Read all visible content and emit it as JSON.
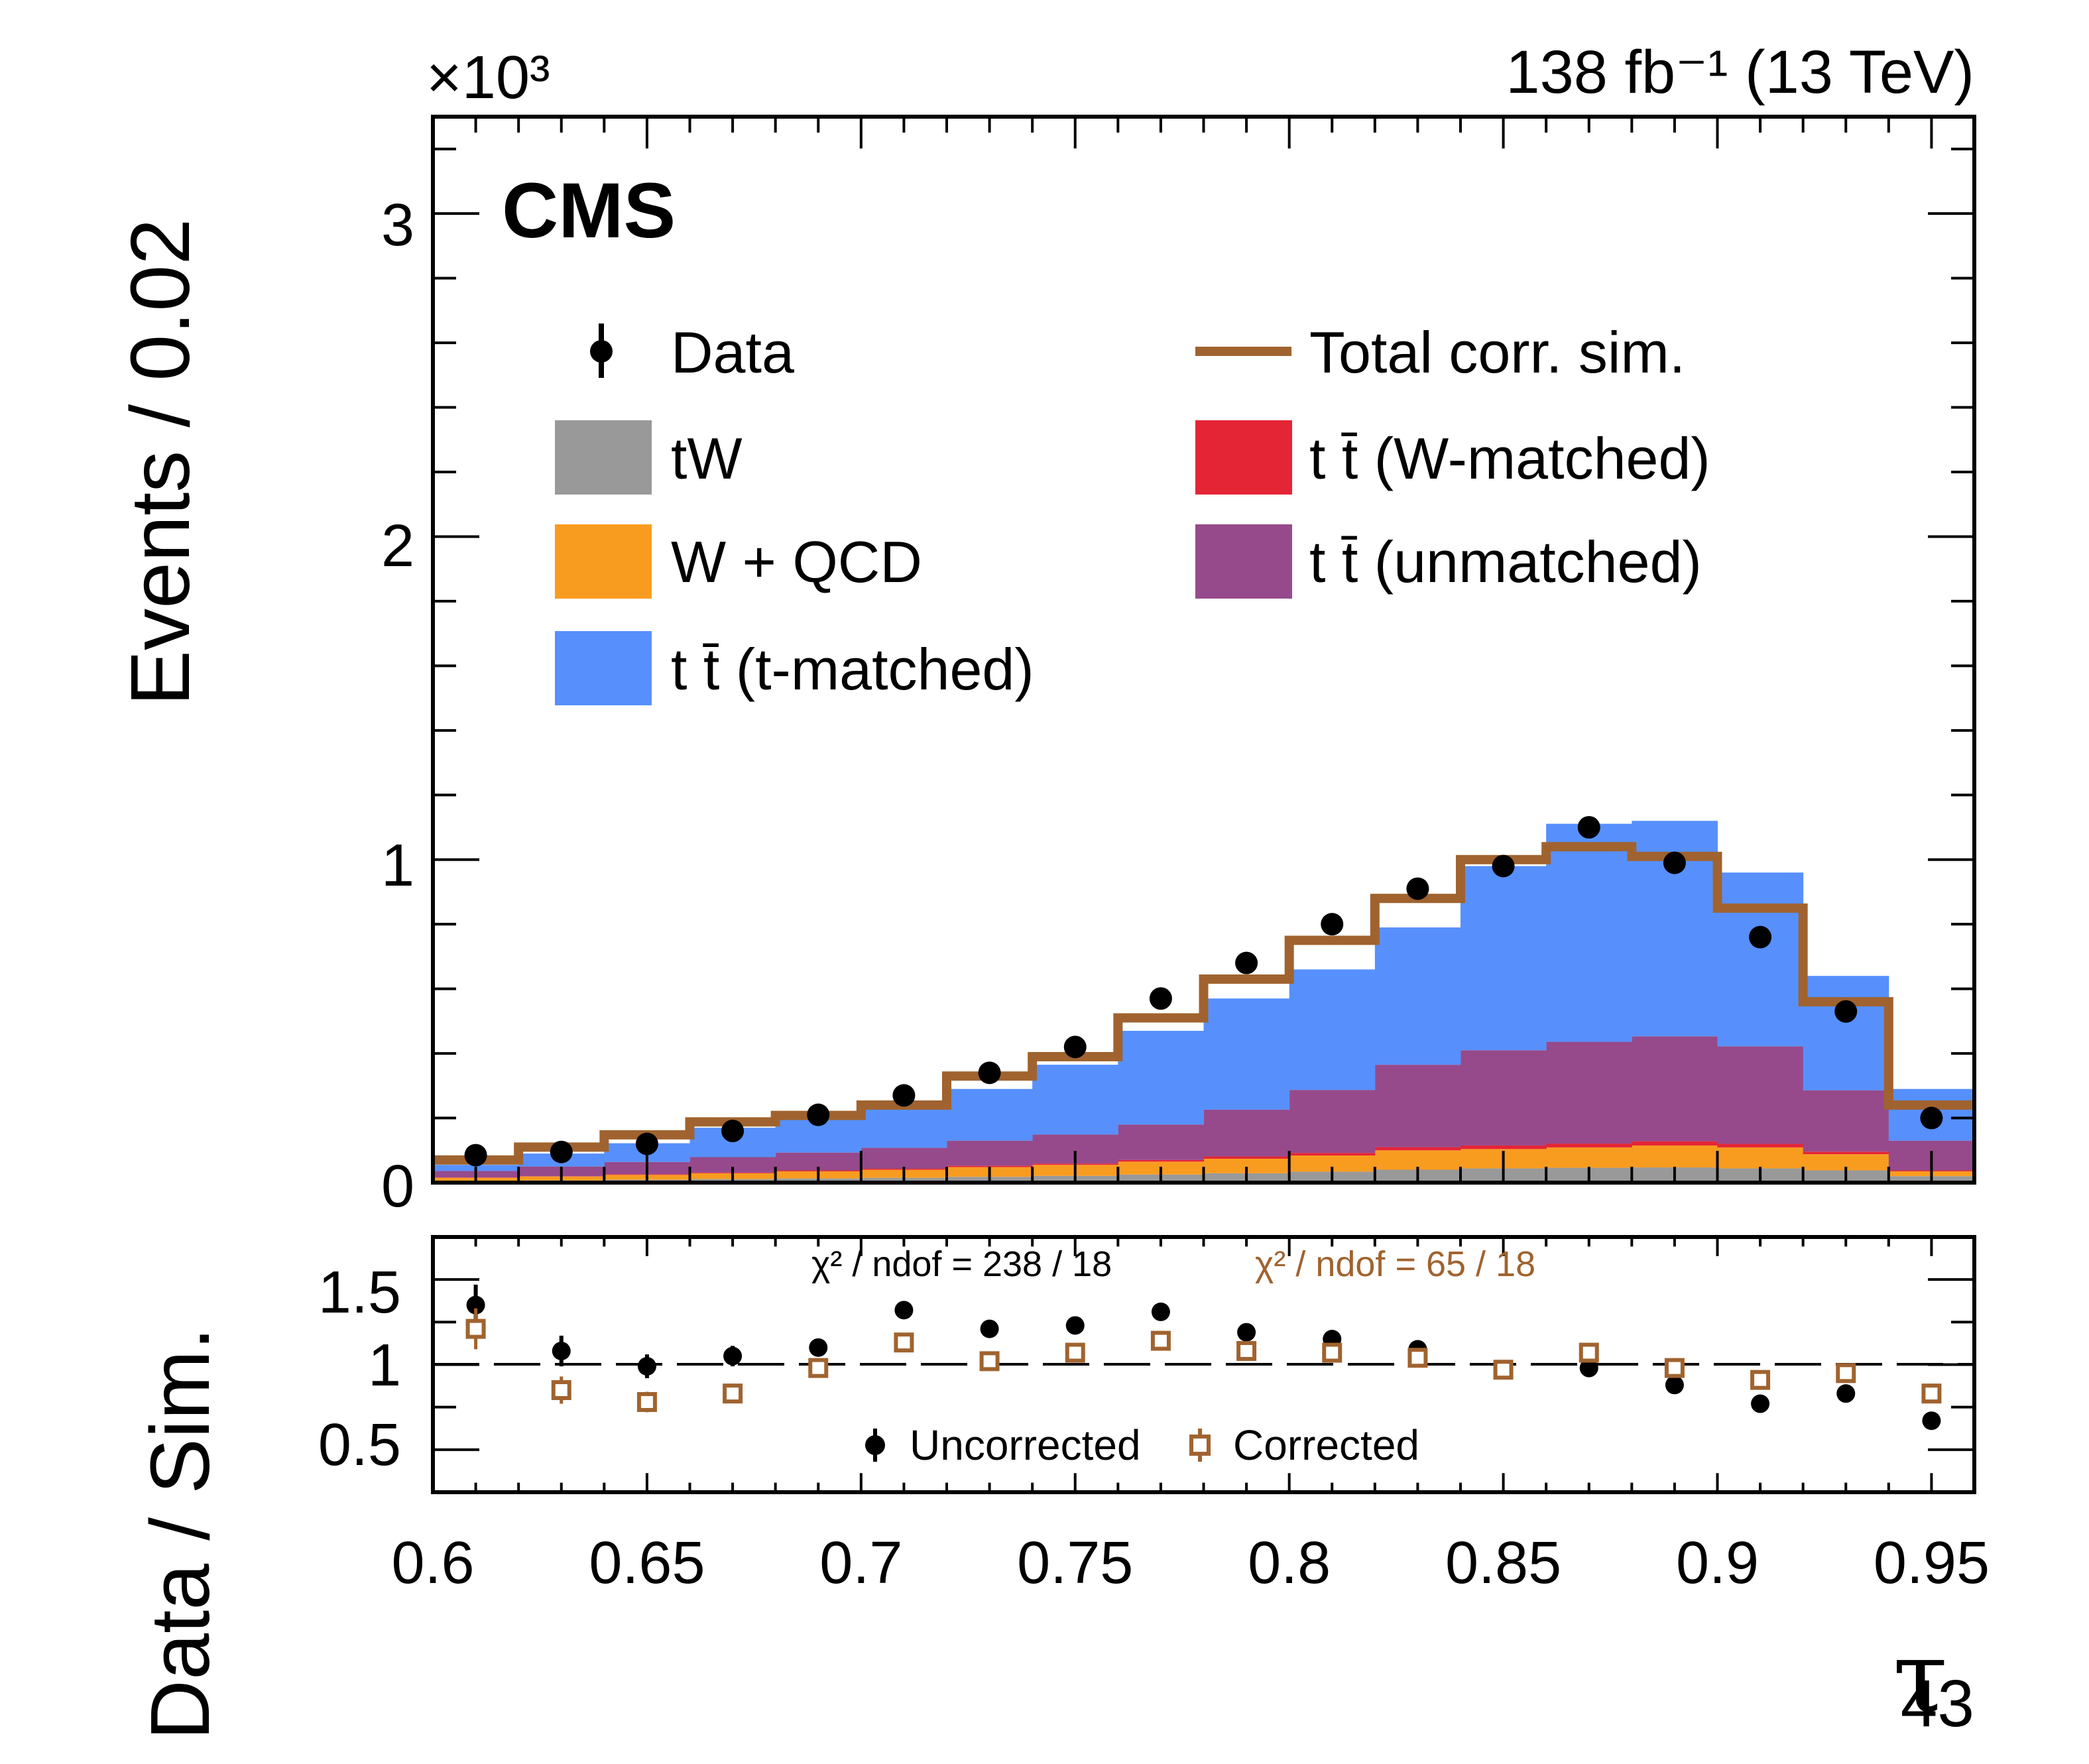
{
  "lumi_label": "138 fb⁻¹ (13 TeV)",
  "experiment_label": "CMS",
  "scale_label": "×10³",
  "top_panel": {
    "ylabel": "Events / 0.02",
    "yticks": [
      "0",
      "1",
      "2",
      "3"
    ]
  },
  "bottom_panel": {
    "ylabel": "Data / Sim.",
    "yticks": [
      "0.5",
      "1",
      "1.5"
    ],
    "chi2_uncorrected": "χ² / ndof = 238 / 18",
    "chi2_corrected": "χ² / ndof = 65 / 18",
    "legend": {
      "uncorrected": "Uncorrected",
      "corrected": "Corrected"
    }
  },
  "x_axis": {
    "label_main": "τ",
    "label_sub": "43",
    "ticks": [
      "0.6",
      "0.65",
      "0.7",
      "0.75",
      "0.8",
      "0.85",
      "0.9",
      "0.95"
    ]
  },
  "legend": {
    "data": "Data",
    "total": "Total corr. sim.",
    "tw": "tW",
    "ttbar_w": "t t̄ (W-matched)",
    "wqcd": "W + QCD",
    "ttbar_un": "t t̄ (unmatched)",
    "ttbar_t": "t t̄ (t-matched)"
  },
  "colors": {
    "tw": "#999999",
    "wqcd": "#f89c20",
    "ttbar_w": "#e42536",
    "ttbar_un": "#964a8b",
    "ttbar_t": "#5790fc",
    "total": "#a0632f",
    "corrected": "#a0632f"
  },
  "chart_data": {
    "type": "bar",
    "stacked": true,
    "x_range": [
      0.6,
      0.96
    ],
    "bin_width": 0.02,
    "bin_edges": [
      0.6,
      0.62,
      0.64,
      0.66,
      0.68,
      0.7,
      0.72,
      0.74,
      0.76,
      0.78,
      0.8,
      0.82,
      0.84,
      0.86,
      0.88,
      0.9,
      0.92,
      0.94,
      0.96
    ],
    "ylim_top": [
      0,
      3.3
    ],
    "ylim_ratio": [
      0.25,
      1.75
    ],
    "units_note": "top panel values in units of 10^3 events",
    "series": [
      {
        "name": "tW",
        "values": [
          0.005,
          0.007,
          0.009,
          0.011,
          0.013,
          0.015,
          0.018,
          0.021,
          0.025,
          0.029,
          0.034,
          0.04,
          0.044,
          0.046,
          0.047,
          0.044,
          0.038,
          0.02
        ]
      },
      {
        "name": "W + QCD",
        "values": [
          0.01,
          0.012,
          0.015,
          0.018,
          0.022,
          0.025,
          0.03,
          0.034,
          0.04,
          0.045,
          0.05,
          0.06,
          0.06,
          0.063,
          0.068,
          0.065,
          0.05,
          0.015
        ]
      },
      {
        "name": "tt (W-matched)",
        "values": [
          0.001,
          0.001,
          0.002,
          0.002,
          0.003,
          0.003,
          0.004,
          0.004,
          0.005,
          0.007,
          0.008,
          0.01,
          0.011,
          0.012,
          0.013,
          0.011,
          0.008,
          0.003
        ]
      },
      {
        "name": "tt (unmatched)",
        "values": [
          0.02,
          0.03,
          0.038,
          0.048,
          0.055,
          0.065,
          0.078,
          0.09,
          0.11,
          0.145,
          0.195,
          0.255,
          0.295,
          0.315,
          0.325,
          0.302,
          0.19,
          0.092
        ]
      },
      {
        "name": "tt (t-matched)",
        "values": [
          0.019,
          0.04,
          0.058,
          0.091,
          0.112,
          0.127,
          0.16,
          0.216,
          0.29,
          0.344,
          0.373,
          0.425,
          0.57,
          0.675,
          0.667,
          0.538,
          0.354,
          0.16
        ]
      }
    ],
    "total_corrected": [
      0.07,
      0.11,
      0.148,
      0.188,
      0.208,
      0.24,
      0.33,
      0.39,
      0.51,
      0.63,
      0.75,
      0.88,
      1.0,
      1.04,
      1.01,
      0.85,
      0.56,
      0.24
    ],
    "data": {
      "x": [
        0.61,
        0.63,
        0.65,
        0.67,
        0.69,
        0.71,
        0.73,
        0.75,
        0.77,
        0.79,
        0.81,
        0.83,
        0.85,
        0.87,
        0.89,
        0.91,
        0.93,
        0.95
      ],
      "y": [
        0.085,
        0.095,
        0.12,
        0.16,
        0.21,
        0.27,
        0.34,
        0.42,
        0.57,
        0.68,
        0.8,
        0.91,
        0.98,
        1.1,
        0.99,
        0.76,
        0.53,
        0.2
      ],
      "yerr": [
        0.01,
        0.01,
        0.011,
        0.013,
        0.015,
        0.016,
        0.018,
        0.02,
        0.024,
        0.026,
        0.028,
        0.03,
        0.031,
        0.033,
        0.031,
        0.028,
        0.023,
        0.014
      ]
    },
    "ratio_uncorrected": {
      "x": [
        0.61,
        0.63,
        0.65,
        0.67,
        0.69,
        0.71,
        0.73,
        0.75,
        0.77,
        0.79,
        0.81,
        0.83,
        0.85,
        0.87,
        0.89,
        0.91,
        0.93,
        0.95
      ],
      "y": [
        1.35,
        1.08,
        0.99,
        1.05,
        1.1,
        1.32,
        1.21,
        1.23,
        1.31,
        1.19,
        1.15,
        1.09,
        0.97,
        0.98,
        0.88,
        0.77,
        0.83,
        0.67
      ],
      "yerr": [
        0.12,
        0.09,
        0.07,
        0.06,
        0.05,
        0.05,
        0.04,
        0.04,
        0.03,
        0.03,
        0.02,
        0.02,
        0.02,
        0.02,
        0.02,
        0.02,
        0.02,
        0.03
      ]
    },
    "ratio_corrected": {
      "x": [
        0.61,
        0.63,
        0.65,
        0.67,
        0.69,
        0.71,
        0.73,
        0.75,
        0.77,
        0.79,
        0.81,
        0.83,
        0.85,
        0.87,
        0.89,
        0.91,
        0.93,
        0.95
      ],
      "y": [
        1.21,
        0.85,
        0.78,
        0.83,
        0.98,
        1.13,
        1.02,
        1.07,
        1.14,
        1.08,
        1.07,
        1.04,
        0.97,
        1.07,
        0.98,
        0.91,
        0.95,
        0.83
      ],
      "yerr": [
        0.12,
        0.08,
        0.06,
        0.05,
        0.05,
        0.04,
        0.04,
        0.03,
        0.03,
        0.03,
        0.02,
        0.02,
        0.02,
        0.02,
        0.02,
        0.02,
        0.02,
        0.03
      ]
    }
  }
}
